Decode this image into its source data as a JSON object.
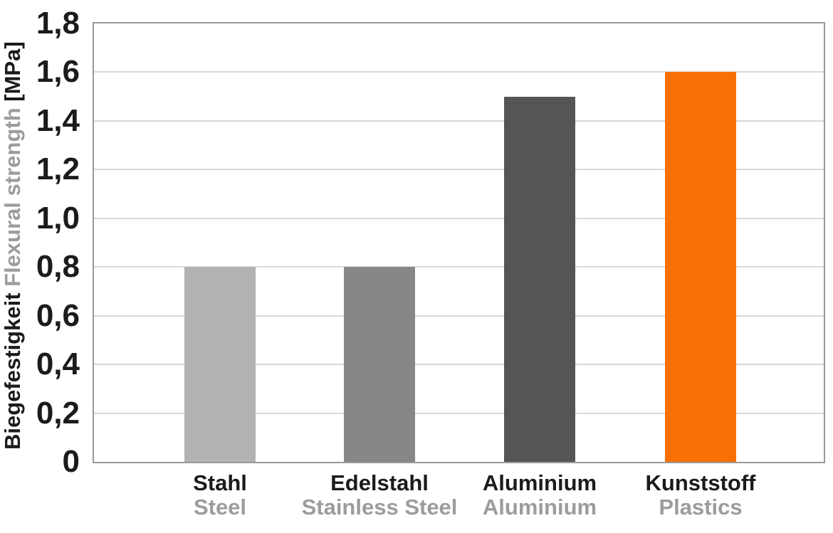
{
  "chart_data": {
    "type": "bar",
    "title": "",
    "xlabel": "",
    "ylabel": {
      "de": "Biegefestigkeit",
      "en": "Flexural strength",
      "unit": "[MPa]"
    },
    "categories": [
      {
        "de": "Stahl",
        "en": "Steel"
      },
      {
        "de": "Edelstahl",
        "en": "Stainless Steel"
      },
      {
        "de": "Aluminium",
        "en": "Aluminium"
      },
      {
        "de": "Kunststoff",
        "en": "Plastics"
      }
    ],
    "values": [
      0.8,
      0.8,
      1.5,
      1.6
    ],
    "bar_colors": [
      "#b2b2b2",
      "#878787",
      "#555555",
      "#f87004"
    ],
    "y_ticks": [
      "0",
      "0,2",
      "0,4",
      "0,6",
      "0,8",
      "1,0",
      "1,2",
      "1,4",
      "1,6",
      "1,8"
    ],
    "y_tick_values": [
      0,
      0.2,
      0.4,
      0.6,
      0.8,
      1.0,
      1.2,
      1.4,
      1.6,
      1.8
    ],
    "ylim": [
      0,
      1.8
    ],
    "decimal_separator": ",",
    "grid": true,
    "legend_position": "none",
    "colors": {
      "text_dark": "#1b1b1b",
      "text_muted": "#9c9c9c",
      "gridline": "#d9d9d9",
      "frame": "#999999",
      "background": "#ffffff"
    }
  }
}
